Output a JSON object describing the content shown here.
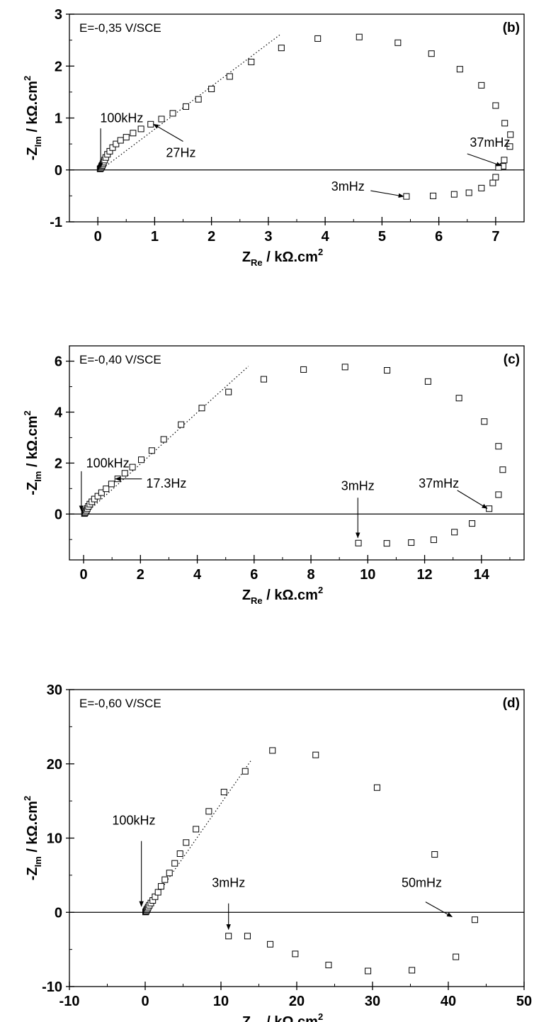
{
  "chart_data": [
    {
      "type": "scatter",
      "panel_label": "(b)",
      "condition": "E=-0,35 V/SCE",
      "xlabel": {
        "main": "Z",
        "sub": "Re",
        "rest": " / kΩ.cm",
        "sup": "2"
      },
      "ylabel": {
        "main": "-Z",
        "sub": "Im",
        "rest": " / kΩ.cm",
        "sup": "2"
      },
      "xlim": [
        -0.5,
        7.5
      ],
      "ylim": [
        -1,
        3
      ],
      "xticks": [
        0,
        1,
        2,
        3,
        4,
        5,
        6,
        7
      ],
      "yticks": [
        -1,
        0,
        1,
        2,
        3
      ],
      "ytick_labels": [
        "-1",
        "0",
        "1",
        "2",
        "3"
      ],
      "x": [
        0.04,
        0.05,
        0.06,
        0.07,
        0.08,
        0.09,
        0.1,
        0.12,
        0.14,
        0.17,
        0.21,
        0.26,
        0.32,
        0.4,
        0.5,
        0.62,
        0.76,
        0.93,
        1.12,
        1.32,
        1.55,
        1.77,
        2.0,
        2.32,
        2.7,
        3.23,
        3.87,
        4.6,
        5.28,
        5.87,
        6.37,
        6.75,
        7.0,
        7.16,
        7.26,
        7.25,
        7.15,
        7.13,
        7.05,
        7.0,
        6.95,
        6.75,
        6.53,
        6.27,
        5.9,
        5.43
      ],
      "y": [
        0.02,
        0.03,
        0.05,
        0.07,
        0.09,
        0.12,
        0.15,
        0.19,
        0.24,
        0.3,
        0.36,
        0.43,
        0.5,
        0.57,
        0.63,
        0.71,
        0.79,
        0.88,
        0.98,
        1.09,
        1.22,
        1.36,
        1.56,
        1.8,
        2.08,
        2.35,
        2.53,
        2.56,
        2.45,
        2.24,
        1.94,
        1.63,
        1.24,
        0.9,
        0.68,
        0.45,
        0.19,
        0.07,
        0.05,
        -0.14,
        -0.25,
        -0.35,
        -0.44,
        -0.47,
        -0.5,
        -0.51
      ],
      "fit_line": {
        "style": "dotted",
        "x": [
          0.05,
          3.2
        ],
        "y": [
          0.0,
          2.6
        ]
      },
      "annotations": [
        {
          "label": "100kHz",
          "text_x": 0.42,
          "text_y": 1.0,
          "tail": [
            0.05,
            0.8
          ],
          "head": [
            0.05,
            0.04
          ],
          "anchor": "middle"
        },
        {
          "label": "27Hz",
          "text_x": 1.2,
          "text_y": 0.33,
          "tail": [
            1.5,
            0.55
          ],
          "head": [
            0.98,
            0.88
          ],
          "anchor": "start"
        },
        {
          "label": "37mHz",
          "text_x": 6.9,
          "text_y": 0.53,
          "tail": [
            6.5,
            0.31
          ],
          "head": [
            7.1,
            0.08
          ],
          "anchor": "middle"
        },
        {
          "label": "3mHz",
          "text_x": 4.4,
          "text_y": -0.32,
          "tail": [
            4.8,
            -0.4
          ],
          "head": [
            5.38,
            -0.51
          ],
          "anchor": "middle"
        }
      ]
    },
    {
      "type": "scatter",
      "panel_label": "(c)",
      "condition": "E=-0,40 V/SCE",
      "xlabel": {
        "main": "Z",
        "sub": "Re",
        "rest": " / kΩ.cm",
        "sup": "2"
      },
      "ylabel": {
        "main": "-Z",
        "sub": "Im",
        "rest": " / kΩ.cm",
        "sup": "2"
      },
      "xlim": [
        -0.5,
        15.5
      ],
      "ylim": [
        -1.8,
        6.6
      ],
      "xticks": [
        0,
        2,
        4,
        6,
        8,
        10,
        12,
        14
      ],
      "yticks": [
        0,
        2,
        4,
        6
      ],
      "ytick_labels": [
        "0",
        "2",
        "4",
        "6"
      ],
      "x": [
        0.03,
        0.05,
        0.07,
        0.1,
        0.13,
        0.17,
        0.22,
        0.29,
        0.38,
        0.5,
        0.63,
        0.79,
        0.98,
        1.2,
        1.45,
        1.72,
        2.03,
        2.4,
        2.82,
        3.43,
        4.16,
        5.1,
        6.34,
        7.74,
        9.2,
        10.68,
        12.12,
        13.21,
        14.1,
        14.6,
        14.75,
        14.6,
        14.27,
        13.67,
        13.05,
        12.32,
        11.53,
        10.67,
        9.67
      ],
      "y": [
        0.02,
        0.05,
        0.1,
        0.15,
        0.22,
        0.3,
        0.39,
        0.48,
        0.59,
        0.7,
        0.84,
        0.99,
        1.18,
        1.38,
        1.6,
        1.84,
        2.13,
        2.49,
        2.93,
        3.51,
        4.16,
        4.79,
        5.29,
        5.67,
        5.77,
        5.64,
        5.2,
        4.55,
        3.63,
        2.66,
        1.74,
        0.76,
        0.21,
        -0.37,
        -0.71,
        -1.01,
        -1.12,
        -1.15,
        -1.14
      ],
      "fit_line": {
        "style": "dotted",
        "x": [
          0.05,
          5.8
        ],
        "y": [
          0.0,
          5.8
        ]
      },
      "annotations": [
        {
          "label": "100kHz",
          "text_x": 0.85,
          "text_y": 2.0,
          "tail": [
            -0.08,
            1.68
          ],
          "head": [
            -0.08,
            0.13
          ],
          "anchor": "middle"
        },
        {
          "label": "17.3Hz",
          "text_x": 2.2,
          "text_y": 1.2,
          "tail": [
            2.05,
            1.38
          ],
          "head": [
            1.12,
            1.38
          ],
          "anchor": "start"
        },
        {
          "label": "37mHz",
          "text_x": 12.5,
          "text_y": 1.2,
          "tail": [
            13.15,
            0.93
          ],
          "head": [
            14.2,
            0.22
          ],
          "anchor": "middle"
        },
        {
          "label": "3mHz",
          "text_x": 9.65,
          "text_y": 1.1,
          "tail": [
            9.65,
            0.64
          ],
          "head": [
            9.65,
            -0.93
          ],
          "anchor": "middle"
        }
      ]
    },
    {
      "type": "scatter",
      "panel_label": "(d)",
      "condition": "E=-0,60 V/SCE",
      "xlabel": {
        "main": "Z",
        "sub": "Re",
        "rest": " / kΩ.cm",
        "sup": "2"
      },
      "ylabel": {
        "main": "-Z",
        "sub": "Im",
        "rest": " / kΩ.cm",
        "sup": "2"
      },
      "xlim": [
        -10,
        50
      ],
      "ylim": [
        -10,
        30
      ],
      "xticks": [
        -10,
        0,
        10,
        20,
        30,
        40,
        50
      ],
      "yticks": [
        -10,
        0,
        10,
        20,
        30
      ],
      "ytick_labels": [
        "-10",
        "0",
        "10",
        "20",
        "30"
      ],
      "x": [
        0.05,
        0.1,
        0.15,
        0.2,
        0.3,
        0.4,
        0.55,
        0.75,
        1.0,
        1.3,
        1.7,
        2.1,
        2.6,
        3.2,
        3.9,
        4.6,
        5.4,
        6.7,
        8.4,
        10.4,
        13.2,
        16.8,
        22.5,
        30.6,
        38.2,
        43.5,
        41.0,
        35.2,
        29.4,
        24.2,
        19.8,
        16.5,
        13.5,
        11.0
      ],
      "y": [
        0.05,
        0.1,
        0.2,
        0.35,
        0.5,
        0.7,
        0.95,
        1.25,
        1.6,
        2.1,
        2.7,
        3.5,
        4.4,
        5.3,
        6.6,
        7.9,
        9.4,
        11.2,
        13.6,
        16.2,
        19.0,
        21.8,
        21.2,
        16.8,
        7.8,
        -1.0,
        -6.0,
        -7.8,
        -7.9,
        -7.1,
        -5.6,
        -4.3,
        -3.2,
        -3.2
      ],
      "fit_line": {
        "style": "dotted",
        "x": [
          0.1,
          14.0
        ],
        "y": [
          0.2,
          20.5
        ]
      },
      "annotations": [
        {
          "label": "100kHz",
          "text_x": -1.5,
          "text_y": 12.4,
          "tail": [
            -0.5,
            9.6
          ],
          "head": [
            -0.5,
            0.8
          ],
          "anchor": "middle"
        },
        {
          "label": "3mHz",
          "text_x": 11.0,
          "text_y": 4.0,
          "tail": [
            11.0,
            1.2
          ],
          "head": [
            11.0,
            -2.3
          ],
          "anchor": "middle"
        },
        {
          "label": "50mHz",
          "text_x": 36.5,
          "text_y": 4.0,
          "tail": [
            37.0,
            1.4
          ],
          "head": [
            40.5,
            -0.6
          ],
          "anchor": "middle"
        }
      ]
    }
  ]
}
